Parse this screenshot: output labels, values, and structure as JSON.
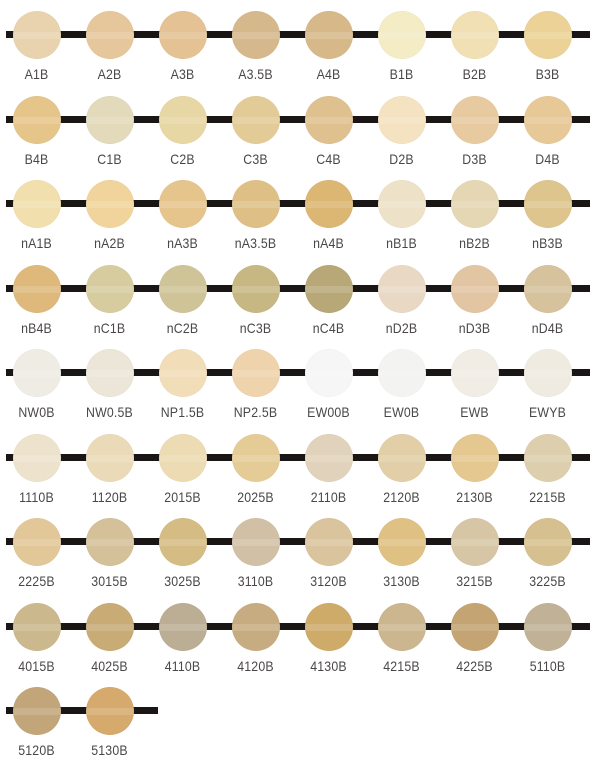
{
  "swatches": [
    [
      {
        "label": "A1B",
        "color": "#e8d3ae"
      },
      {
        "label": "A2B",
        "color": "#e6c69b"
      },
      {
        "label": "A3B",
        "color": "#e4c293"
      },
      {
        "label": "A3.5B",
        "color": "#d5b98c"
      },
      {
        "label": "A4B",
        "color": "#d7b888"
      },
      {
        "label": "B1B",
        "color": "#f3ecc4"
      },
      {
        "label": "B2B",
        "color": "#f0e0b4"
      },
      {
        "label": "B3B",
        "color": "#ecd296"
      }
    ],
    [
      {
        "label": "B4B",
        "color": "#e6c58a"
      },
      {
        "label": "C1B",
        "color": "#e2dabb"
      },
      {
        "label": "C2B",
        "color": "#e7d7a4"
      },
      {
        "label": "C3B",
        "color": "#e3cb98"
      },
      {
        "label": "C4B",
        "color": "#dfc190"
      },
      {
        "label": "D2B",
        "color": "#f4e2c0"
      },
      {
        "label": "D3B",
        "color": "#e7caa0"
      },
      {
        "label": "D4B",
        "color": "#e7c897"
      }
    ],
    [
      {
        "label": "nA1B",
        "color": "#f2dfae"
      },
      {
        "label": "nA2B",
        "color": "#f0d49b"
      },
      {
        "label": "nA3B",
        "color": "#e6c58d"
      },
      {
        "label": "nA3.5B",
        "color": "#dec087"
      },
      {
        "label": "nA4B",
        "color": "#dcb673"
      },
      {
        "label": "nB1B",
        "color": "#ede2c7"
      },
      {
        "label": "nB2B",
        "color": "#e5d6b4"
      },
      {
        "label": "nB3B",
        "color": "#ddc58d"
      }
    ],
    [
      {
        "label": "nB4B",
        "color": "#deb97b"
      },
      {
        "label": "nC1B",
        "color": "#d6cc9f"
      },
      {
        "label": "nC2B",
        "color": "#cfc497"
      },
      {
        "label": "nC3B",
        "color": "#c7b883"
      },
      {
        "label": "nC4B",
        "color": "#b8a878"
      },
      {
        "label": "nD2B",
        "color": "#e9d9c4"
      },
      {
        "label": "nD3B",
        "color": "#e2c5a2"
      },
      {
        "label": "nD4B",
        "color": "#d6c29c"
      }
    ],
    [
      {
        "label": "NW0B",
        "color": "#efece4"
      },
      {
        "label": "NW0.5B",
        "color": "#ebe6d7"
      },
      {
        "label": "NP1.5B",
        "color": "#f1ddb7"
      },
      {
        "label": "NP2.5B",
        "color": "#efd3ad"
      },
      {
        "label": "EW00B",
        "color": "#f6f6f6"
      },
      {
        "label": "EW0B",
        "color": "#f3f3f1"
      },
      {
        "label": "EWB",
        "color": "#f1ede5"
      },
      {
        "label": "EWYB",
        "color": "#f0ebe0"
      }
    ],
    [
      {
        "label": "1110B",
        "color": "#ede3cc"
      },
      {
        "label": "1120B",
        "color": "#eadab8"
      },
      {
        "label": "2015B",
        "color": "#ecdbb3"
      },
      {
        "label": "2025B",
        "color": "#e5cc96"
      },
      {
        "label": "2110B",
        "color": "#e1d3bb"
      },
      {
        "label": "2120B",
        "color": "#e2cfa7"
      },
      {
        "label": "2130B",
        "color": "#e4c890"
      },
      {
        "label": "2215B",
        "color": "#ddceae"
      }
    ],
    [
      {
        "label": "2225B",
        "color": "#e2c898"
      },
      {
        "label": "3015B",
        "color": "#d4c199"
      },
      {
        "label": "3025B",
        "color": "#d5bc84"
      },
      {
        "label": "3110B",
        "color": "#d1c0a6"
      },
      {
        "label": "3120B",
        "color": "#d9c49d"
      },
      {
        "label": "3130B",
        "color": "#dfc183"
      },
      {
        "label": "3215B",
        "color": "#d6c6a5"
      },
      {
        "label": "3225B",
        "color": "#d7c08f"
      }
    ],
    [
      {
        "label": "4015B",
        "color": "#cbb88c"
      },
      {
        "label": "4025B",
        "color": "#c8ab75"
      },
      {
        "label": "4110B",
        "color": "#bcae94"
      },
      {
        "label": "4120B",
        "color": "#c8ac81"
      },
      {
        "label": "4130B",
        "color": "#cfab69"
      },
      {
        "label": "4215B",
        "color": "#ccb68f"
      },
      {
        "label": "4225B",
        "color": "#c4a472"
      },
      {
        "label": "5110B",
        "color": "#c1b196"
      }
    ],
    [
      {
        "label": "5120B",
        "color": "#c2a67a"
      },
      {
        "label": "5130B",
        "color": "#d6aa6d"
      }
    ]
  ]
}
